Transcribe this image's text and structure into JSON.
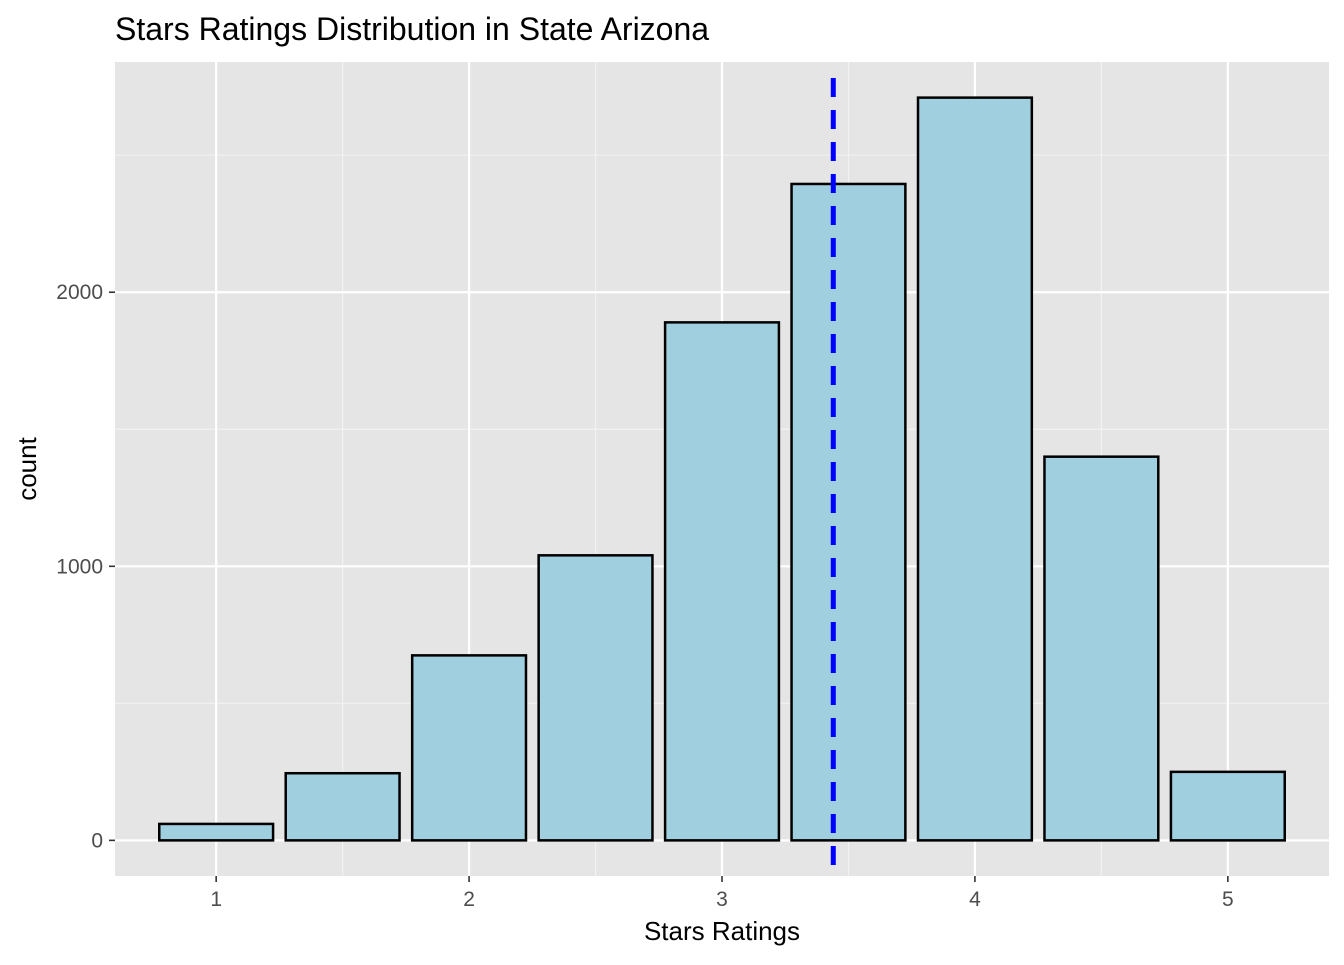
{
  "chart_data": {
    "type": "bar",
    "title": "Stars Ratings Distribution in State Arizona",
    "xlabel": "Stars Ratings",
    "ylabel": "count",
    "x": [
      1.0,
      1.5,
      2.0,
      2.5,
      3.0,
      3.5,
      4.0,
      4.5,
      5.0
    ],
    "values": [
      60,
      245,
      675,
      1040,
      1890,
      2395,
      2710,
      1400,
      250
    ],
    "bar_width": 0.45,
    "xlim": [
      0.6,
      5.4
    ],
    "ylim": [
      -130,
      2840
    ],
    "x_ticks": [
      1,
      2,
      3,
      4,
      5
    ],
    "x_tick_labels": [
      "1",
      "2",
      "3",
      "4",
      "5"
    ],
    "y_ticks": [
      0,
      1000,
      2000
    ],
    "y_tick_labels": [
      "0",
      "1000",
      "2000"
    ],
    "mean_line": {
      "x": 3.44,
      "style": "dashed",
      "color": "#0000ff"
    },
    "bar_fill": "#a0cfe0",
    "bar_outline": "#000000",
    "panel_background": "#e5e5e5",
    "grid": true
  }
}
